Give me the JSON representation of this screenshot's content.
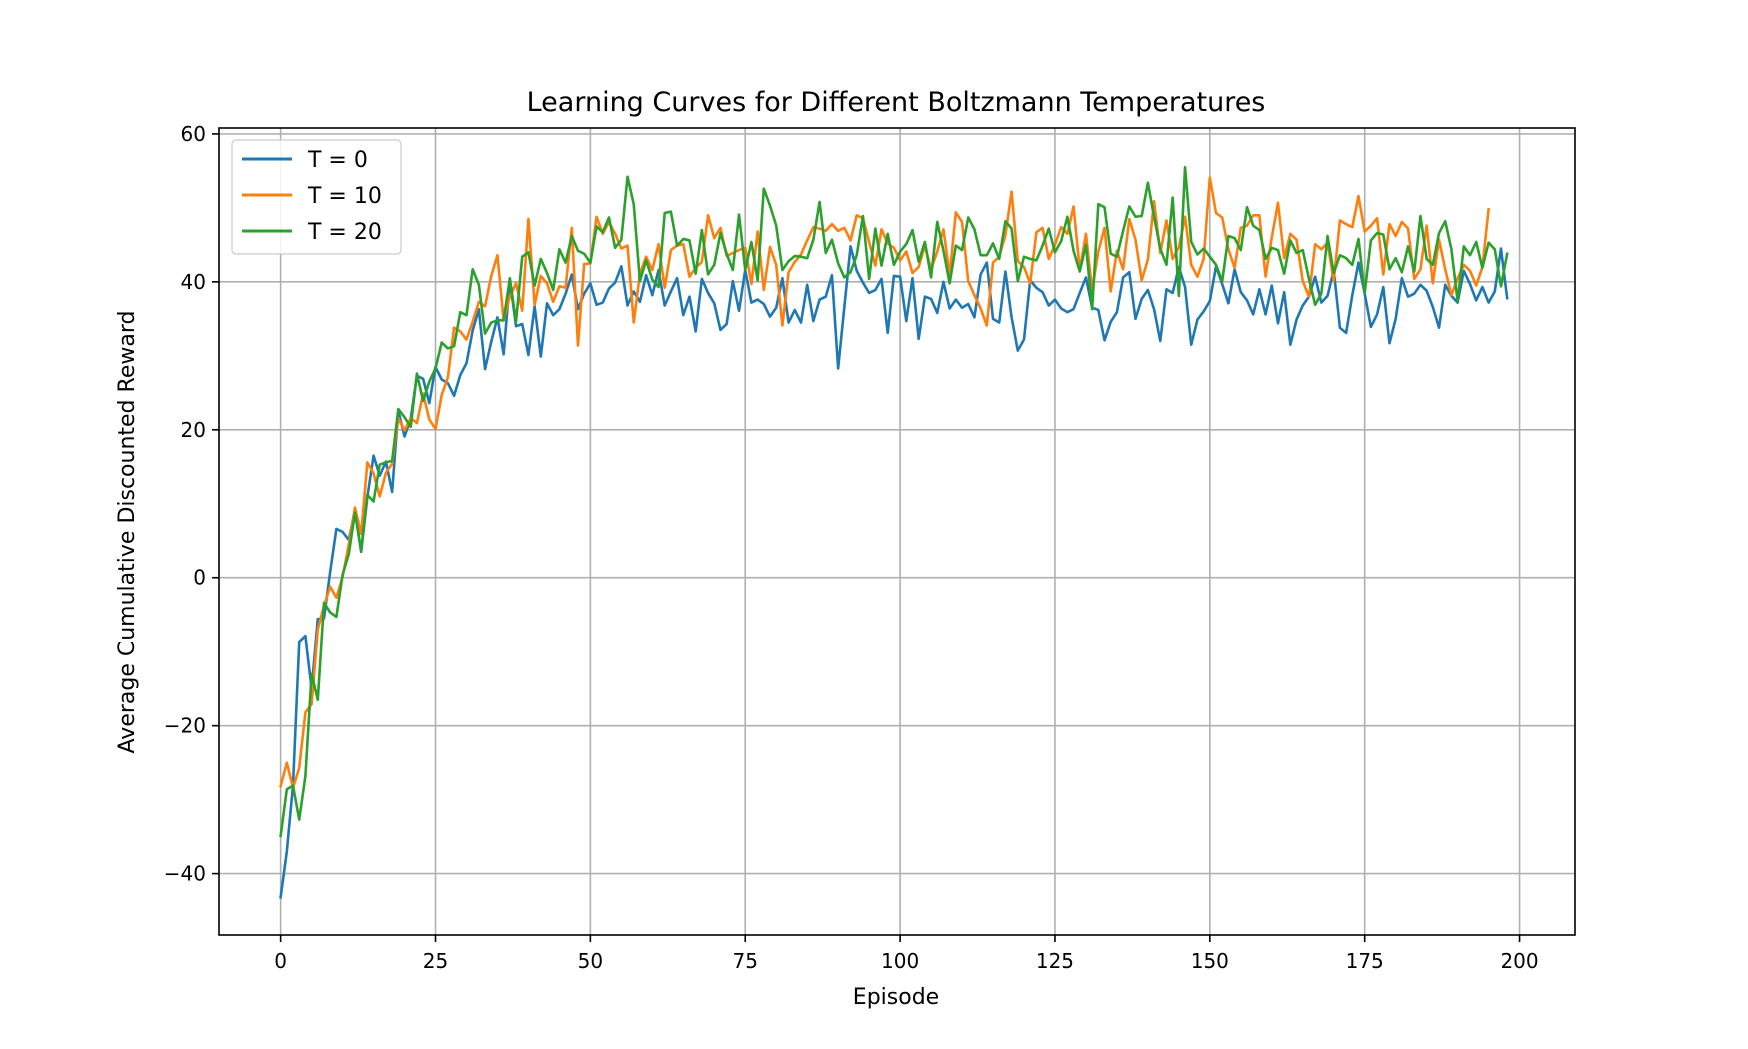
{
  "chart_data": {
    "type": "line",
    "title": "Learning Curves for Different Boltzmann Temperatures",
    "xlabel": "Episode",
    "ylabel": "Average Cumulative Discounted Reward",
    "xlim": [
      -9.95,
      208.95
    ],
    "ylim": [
      -48.3,
      60.8
    ],
    "xticks": [
      0,
      25,
      50,
      75,
      100,
      125,
      150,
      175,
      200
    ],
    "yticks": [
      -40,
      -20,
      0,
      20,
      40,
      60
    ],
    "xtick_labels": [
      "0",
      "25",
      "50",
      "75",
      "100",
      "125",
      "150",
      "175",
      "200"
    ],
    "ytick_labels": [
      "−40",
      "−20",
      "0",
      "20",
      "40",
      "60"
    ],
    "grid": true,
    "legend_position": "upper left",
    "x_start": 0,
    "x_step": 1,
    "series": [
      {
        "name": "T = 0",
        "color": "#1f77b4",
        "values": [
          -43.2,
          -37,
          -28,
          -8.7,
          -7.9,
          -15,
          -5.6,
          -5.5,
          0.8,
          6.6,
          6.2,
          5.1,
          9.1,
          3.5,
          10.9,
          16.5,
          13.8,
          15.7,
          11.6,
          22.6,
          19.1,
          21.5,
          27.3,
          26.9,
          23.6,
          28.5,
          26.8,
          26.3,
          24.6,
          27.4,
          29,
          33.4,
          36.3,
          28.2,
          31.9,
          35.2,
          30.2,
          40.3,
          34,
          34.3,
          30.1,
          36.7,
          29.9,
          37.1,
          35.5,
          36.3,
          38.4,
          41,
          36.3,
          38.4,
          39.8,
          36.9,
          37.2,
          39.1,
          39.9,
          42.1,
          36.8,
          38.7,
          37.3,
          40.9,
          38.2,
          41.6,
          36.8,
          38.7,
          40.5,
          35.5,
          38,
          33.3,
          40.4,
          38.5,
          37.1,
          33.5,
          34.3,
          40.1,
          36.1,
          41.6,
          37.2,
          37.6,
          37,
          35.3,
          36.5,
          40.5,
          34.5,
          36.2,
          34.5,
          39.6,
          34.7,
          37.6,
          38,
          40.9,
          28.3,
          36.6,
          44.8,
          41.5,
          39.9,
          38.5,
          38.9,
          40.4,
          33.1,
          40.8,
          40.7,
          34.7,
          40.5,
          32.3,
          38,
          37.7,
          35.8,
          40,
          36.4,
          37.6,
          36.5,
          37,
          35.2,
          41,
          42.6,
          35,
          34.5,
          41.4,
          35.2,
          30.7,
          32.2,
          40.2,
          39.2,
          38.6,
          36.8,
          37.6,
          36.4,
          35.9,
          36.3,
          38.5,
          40.6,
          36.5,
          36.2,
          32.1,
          34.6,
          35.9,
          40.6,
          41.3,
          35,
          37.7,
          38.9,
          36.3,
          32,
          39,
          38.5,
          42,
          39.3,
          31.5,
          34.9,
          36,
          37.4,
          42.1,
          39.7,
          37.1,
          41.7,
          38.6,
          37.5,
          35.6,
          39,
          35.6,
          39.5,
          34.4,
          38.6,
          31.5,
          34.9,
          36.8,
          38,
          40.7,
          37.2,
          38.1,
          41.6,
          33.8,
          33.1,
          38.2,
          42.6,
          38.4,
          33.9,
          35.6,
          39.3,
          31.7,
          35,
          40.5,
          38,
          38.4,
          39.6,
          38.8,
          36.6,
          33.8,
          39.6,
          38.1,
          37.2,
          41.5,
          39.7,
          37.5,
          39.3,
          37.2,
          38.7,
          44.5,
          37.8
        ]
      },
      {
        "name": "T = 10",
        "color": "#ff7f0e",
        "values": [
          -28.2,
          -25,
          -28.4,
          -25.7,
          -18.2,
          -17.1,
          -7,
          -3.8,
          -1.2,
          -2.7,
          0.1,
          4.5,
          9.5,
          5.9,
          15.6,
          14.1,
          11,
          14.2,
          15.4,
          21.6,
          19.9,
          21.6,
          20.9,
          24.9,
          21.4,
          20.1,
          24.7,
          27.1,
          33.8,
          33.3,
          32.2,
          34.6,
          37.3,
          36.7,
          40.8,
          43.6,
          34.8,
          38,
          39.8,
          36.1,
          48.5,
          36.9,
          40.8,
          39.8,
          37.3,
          39.4,
          39.2,
          47.3,
          31.4,
          42.4,
          42.5,
          48.8,
          46.5,
          48.1,
          46.5,
          44.5,
          44.9,
          34.5,
          41.1,
          43.4,
          41.6,
          45.1,
          39.2,
          44.3,
          44.9,
          45.1,
          40.7,
          41.9,
          42.7,
          49,
          45.9,
          47.3,
          43.5,
          43.9,
          44.3,
          44.6,
          39.7,
          46.8,
          38.9,
          44.7,
          42.3,
          34.1,
          41.3,
          42.7,
          43.7,
          45.6,
          47.4,
          47.2,
          46.9,
          47.8,
          46.9,
          47.3,
          45.6,
          49,
          48.6,
          45.4,
          42.2,
          47.1,
          45.2,
          44.6,
          42.9,
          44.1,
          41.2,
          42,
          44.9,
          41.7,
          44.1,
          47.1,
          40.9,
          49.4,
          48.1,
          40.1,
          38.2,
          36.4,
          34.1,
          42.6,
          43.4,
          46.3,
          52.2,
          42.8,
          42,
          39.8,
          46.7,
          47.3,
          43.1,
          45,
          47.4,
          46.5,
          50.2,
          41.6,
          46.5,
          38.8,
          44.1,
          47.3,
          38.7,
          44.2,
          41.7,
          48.5,
          45.7,
          40.2,
          43,
          50.9,
          43.9,
          48.3,
          43.1,
          44.7,
          48.8,
          42.3,
          40.7,
          43.1,
          54.1,
          49.3,
          48.7,
          44.4,
          41.9,
          47.3,
          47.6,
          49,
          49,
          40.7,
          46,
          50.7,
          43.2,
          46.5,
          45.7,
          40.1,
          38,
          45.1,
          44.4,
          45.3,
          40.1,
          48.3,
          47.8,
          47.4,
          51.6,
          46.8,
          47.6,
          48.6,
          41,
          47.8,
          46.2,
          48.1,
          47.2,
          40.4,
          41.7,
          47.6,
          39.8,
          45.7,
          41.7,
          38.2,
          40.5,
          42.3,
          41.5,
          39.5,
          42,
          49.8
        ]
      },
      {
        "name": "T = 20",
        "color": "#2ca02c",
        "values": [
          -34.9,
          -28.6,
          -28.1,
          -32.7,
          -26.8,
          -13,
          -16.5,
          -3.4,
          -4.7,
          -5.3,
          0.4,
          3.2,
          8.8,
          3.6,
          11.2,
          10.3,
          15.3,
          15.6,
          15.8,
          22.8,
          21.7,
          20.4,
          27.6,
          23.9,
          26.5,
          28.3,
          31.8,
          31,
          31.3,
          35.9,
          35.5,
          41.7,
          39.6,
          33,
          34.5,
          34.8,
          34.8,
          40.5,
          34.6,
          43.4,
          44,
          39.5,
          43.1,
          41.2,
          38.9,
          44.4,
          42.6,
          46.2,
          44.2,
          43.8,
          42.6,
          47.5,
          46.7,
          48.7,
          44.6,
          45.7,
          54.2,
          50.5,
          40.1,
          42.9,
          40.3,
          39.3,
          49.3,
          49.5,
          44.9,
          45.8,
          45.6,
          41.1,
          47,
          41,
          42.3,
          46.6,
          43.8,
          41.6,
          49.1,
          41.6,
          45.4,
          40.2,
          52.6,
          50.3,
          47.6,
          41.6,
          42.8,
          43.5,
          43.4,
          43.2,
          45.7,
          50.8,
          43.9,
          45.7,
          42.5,
          40.6,
          41.3,
          43.6,
          48.9,
          40.4,
          47.2,
          42.2,
          46.5,
          42.3,
          44.1,
          45.1,
          47,
          42.7,
          45.4,
          40.6,
          48.1,
          44.2,
          39.8,
          44.9,
          44.3,
          48.7,
          47.1,
          43.6,
          43.6,
          45.2,
          43.1,
          48.2,
          47.2,
          40.1,
          43.4,
          43.1,
          42.9,
          44.9,
          47.2,
          44,
          45.5,
          48.8,
          44.2,
          41.4,
          45,
          36.3,
          50.5,
          50.1,
          43.8,
          43.4,
          46.9,
          50.2,
          48.8,
          48.9,
          53.4,
          48.8,
          44.5,
          42.3,
          51.4,
          38.1,
          55.5,
          45.4,
          43.7,
          44.5,
          43.4,
          42.3,
          40.1,
          46.2,
          45.9,
          44.3,
          50.1,
          47.6,
          47,
          43.1,
          44.6,
          44.3,
          41.1,
          45.6,
          43.9,
          44.3,
          40.4,
          36.9,
          38.4,
          46.2,
          41.2,
          43.6,
          43.2,
          42.3,
          45.8,
          38.5,
          45.6,
          46.6,
          46.4,
          41.7,
          43.2,
          41.3,
          44.8,
          41.4,
          48.9,
          43.1,
          42.3,
          46.6,
          48.2,
          44.4,
          37.4,
          44.8,
          43.6,
          45.4,
          41.9,
          45.3,
          44.4,
          39.4,
          43.8
        ]
      }
    ]
  }
}
